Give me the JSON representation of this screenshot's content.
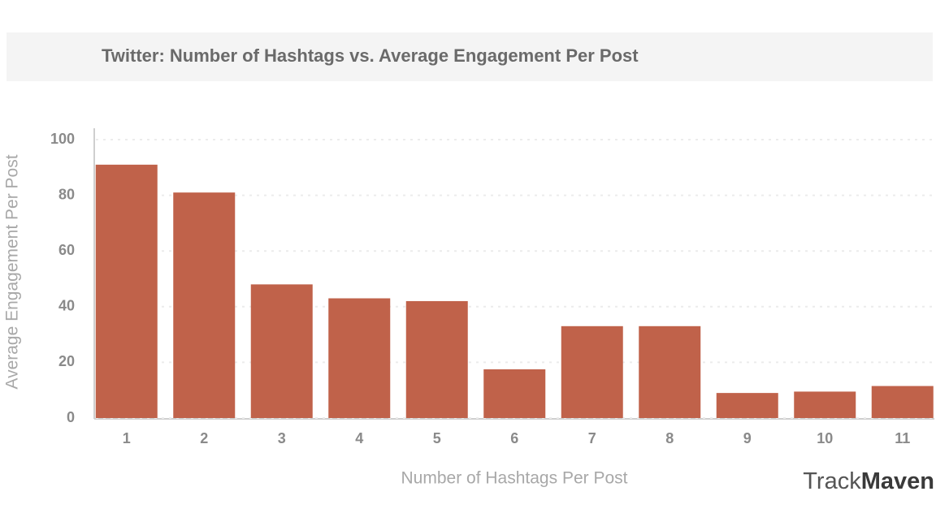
{
  "chart_data": {
    "type": "bar",
    "title": "Twitter: Number of Hashtags vs. Average Engagement Per Post",
    "x_label": "Number of Hashtags Per Post",
    "y_label": "Average Engagement Per Post",
    "categories": [
      "1",
      "2",
      "3",
      "4",
      "5",
      "6",
      "7",
      "8",
      "9",
      "10",
      "11"
    ],
    "values": [
      91,
      81,
      48,
      43,
      42,
      17.5,
      33,
      33,
      9,
      9.5,
      11.5
    ],
    "color": "#c0624a",
    "ylim": [
      0,
      100
    ],
    "yticks": [
      0,
      20,
      40,
      60,
      80,
      100
    ],
    "grid": true
  },
  "brand": {
    "light": "Track",
    "bold": "Maven"
  }
}
